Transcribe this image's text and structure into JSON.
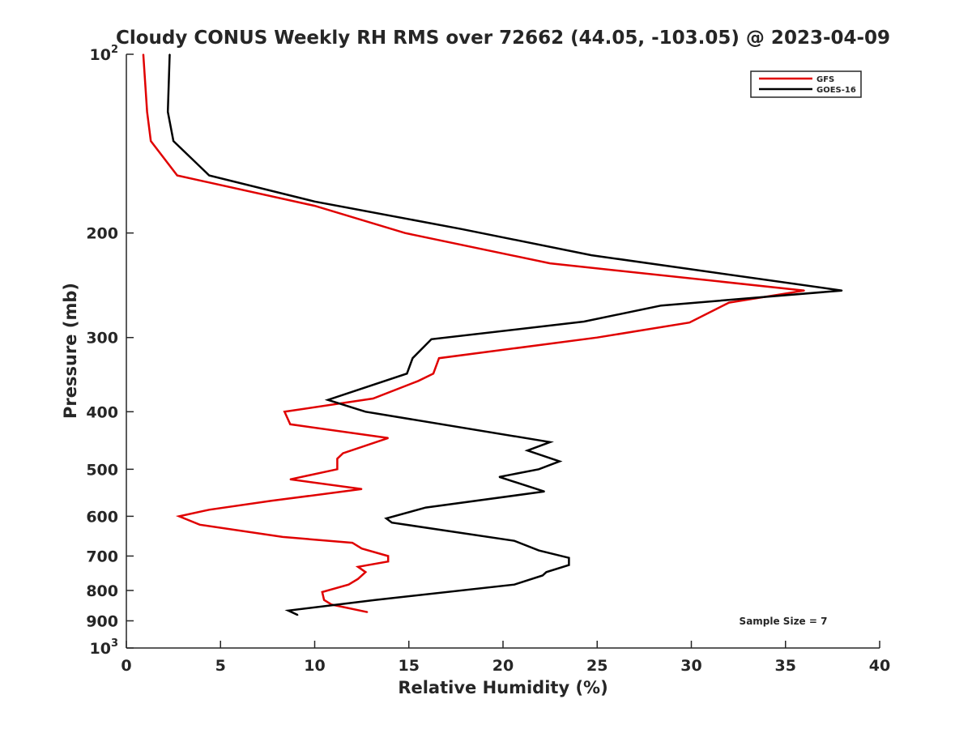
{
  "chart_data": {
    "type": "line",
    "title": "Cloudy CONUS Weekly RH RMS over 72662 (44.05, -103.05) @ 2023-04-09",
    "xlabel": "Relative Humidity (%)",
    "ylabel": "Pressure (mb)",
    "xlim": [
      0,
      40
    ],
    "ylim": [
      100,
      1000
    ],
    "y_scale": "log",
    "y_reversed": true,
    "grid": false,
    "legend_position": "top-right",
    "x_ticks": [
      0,
      5,
      10,
      15,
      20,
      25,
      30,
      35,
      40
    ],
    "y_ticks": [
      100,
      200,
      300,
      400,
      500,
      600,
      700,
      800,
      900,
      1000
    ],
    "y_tick_labels": [
      "10^2",
      "200",
      "300",
      "400",
      "500",
      "600",
      "700",
      "800",
      "900",
      "10^3"
    ],
    "annotation": "Sample Size = 7",
    "series": [
      {
        "name": "GFS",
        "color": "#e00000",
        "points": [
          [
            0.9,
            100
          ],
          [
            1.1,
            125
          ],
          [
            1.3,
            140
          ],
          [
            2.7,
            160
          ],
          [
            10.0,
            180
          ],
          [
            14.8,
            200
          ],
          [
            22.5,
            225
          ],
          [
            36.0,
            250
          ],
          [
            32.0,
            262
          ],
          [
            29.9,
            283
          ],
          [
            25.0,
            300
          ],
          [
            16.6,
            325
          ],
          [
            16.3,
            345
          ],
          [
            15.5,
            355
          ],
          [
            13.1,
            380
          ],
          [
            8.4,
            400
          ],
          [
            8.7,
            420
          ],
          [
            13.9,
            443
          ],
          [
            11.5,
            470
          ],
          [
            11.2,
            480
          ],
          [
            11.2,
            500
          ],
          [
            8.7,
            520
          ],
          [
            12.5,
            540
          ],
          [
            7.7,
            565
          ],
          [
            4.4,
            585
          ],
          [
            2.8,
            600
          ],
          [
            3.9,
            620
          ],
          [
            8.3,
            650
          ],
          [
            12.0,
            665
          ],
          [
            12.5,
            680
          ],
          [
            13.9,
            700
          ],
          [
            13.9,
            715
          ],
          [
            12.3,
            730
          ],
          [
            12.7,
            745
          ],
          [
            12.3,
            765
          ],
          [
            11.8,
            782
          ],
          [
            10.4,
            805
          ],
          [
            10.5,
            830
          ],
          [
            10.9,
            845
          ],
          [
            12.8,
            870
          ]
        ]
      },
      {
        "name": "GOES-16",
        "color": "#000000",
        "points": [
          [
            2.3,
            100
          ],
          [
            2.2,
            125
          ],
          [
            2.5,
            140
          ],
          [
            4.4,
            160
          ],
          [
            10.0,
            177
          ],
          [
            17.8,
            197
          ],
          [
            24.7,
            218
          ],
          [
            38.0,
            250
          ],
          [
            28.4,
            265
          ],
          [
            24.3,
            282
          ],
          [
            16.2,
            302
          ],
          [
            15.2,
            325
          ],
          [
            14.9,
            345
          ],
          [
            10.7,
            382
          ],
          [
            12.7,
            400
          ],
          [
            22.5,
            450
          ],
          [
            21.3,
            465
          ],
          [
            23.0,
            485
          ],
          [
            21.9,
            500
          ],
          [
            19.8,
            515
          ],
          [
            22.2,
            545
          ],
          [
            15.9,
            580
          ],
          [
            13.8,
            605
          ],
          [
            14.1,
            615
          ],
          [
            20.6,
            660
          ],
          [
            21.9,
            685
          ],
          [
            23.5,
            705
          ],
          [
            23.5,
            725
          ],
          [
            22.3,
            745
          ],
          [
            22.1,
            755
          ],
          [
            20.6,
            782
          ],
          [
            13.2,
            830
          ],
          [
            8.6,
            865
          ],
          [
            9.1,
            880
          ]
        ]
      }
    ]
  }
}
